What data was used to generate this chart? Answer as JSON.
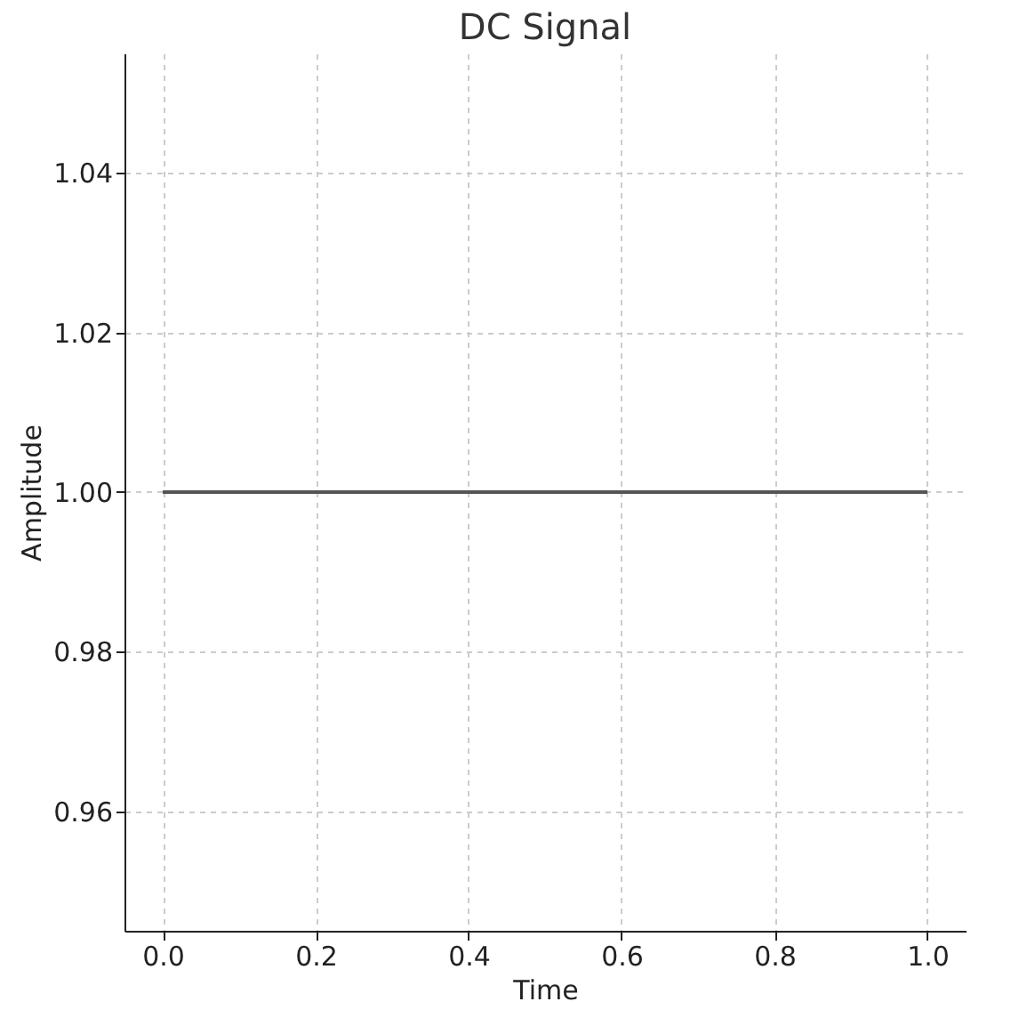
{
  "chart_data": {
    "type": "line",
    "title": "DC Signal",
    "xlabel": "Time",
    "ylabel": "Amplitude",
    "x": [
      0,
      1
    ],
    "series": [
      {
        "color": "#555555",
        "values": [
          1,
          1
        ]
      }
    ],
    "xlim": [
      -0.05,
      1.05
    ],
    "ylim": [
      0.945,
      1.055
    ],
    "xticks": [
      {
        "value": 0,
        "label": "0.0"
      },
      {
        "value": 0.2,
        "label": "0.2"
      },
      {
        "value": 0.4,
        "label": "0.4"
      },
      {
        "value": 0.6,
        "label": "0.6"
      },
      {
        "value": 0.8,
        "label": "0.8"
      },
      {
        "value": 1,
        "label": "1.0"
      }
    ],
    "yticks": [
      {
        "value": 0.96,
        "label": "0.96"
      },
      {
        "value": 0.98,
        "label": "0.98"
      },
      {
        "value": 1,
        "label": "1.00"
      },
      {
        "value": 1.02,
        "label": "1.02"
      },
      {
        "value": 1.04,
        "label": "1.04"
      }
    ],
    "grid": true,
    "line_style": "solid",
    "marker": "none"
  }
}
